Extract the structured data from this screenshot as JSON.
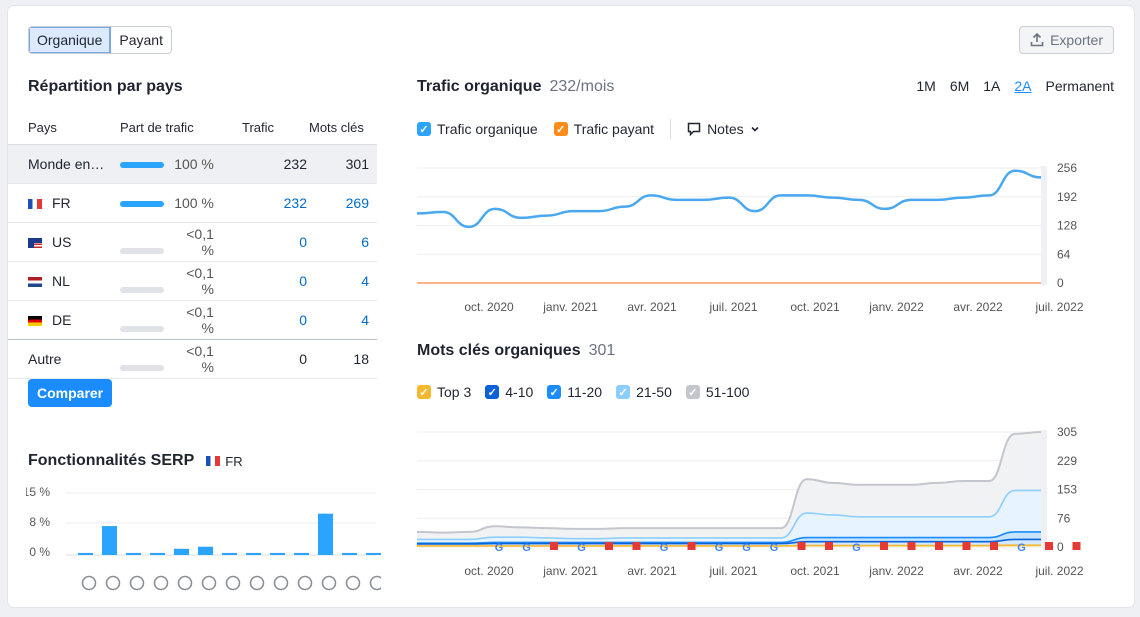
{
  "tabs": {
    "organic": "Organique",
    "paid": "Payant"
  },
  "export_label": "Exporter",
  "countries": {
    "title": "Répartition par pays",
    "headers": {
      "country": "Pays",
      "share": "Part de trafic",
      "traffic": "Trafic",
      "keywords": "Mots clés"
    },
    "rows": [
      {
        "name": "Monde en…",
        "flag": "",
        "share": "100 %",
        "bar": 1.0,
        "traffic": "232",
        "keywords": "301",
        "link": false
      },
      {
        "name": "FR",
        "flag": "fr",
        "share": "100 %",
        "bar": 1.0,
        "traffic": "232",
        "keywords": "269",
        "link": true
      },
      {
        "name": "US",
        "flag": "us",
        "share": "<0,1 %",
        "bar": 0,
        "traffic": "0",
        "keywords": "6",
        "link": true
      },
      {
        "name": "NL",
        "flag": "nl",
        "share": "<0,1 %",
        "bar": 0,
        "traffic": "0",
        "keywords": "4",
        "link": true
      },
      {
        "name": "DE",
        "flag": "de",
        "share": "<0,1 %",
        "bar": 0,
        "traffic": "0",
        "keywords": "4",
        "link": true
      },
      {
        "name": "Autre",
        "flag": "",
        "share": "<0,1 %",
        "bar": 0,
        "traffic": "0",
        "keywords": "18",
        "link": false
      }
    ],
    "compare_label": "Comparer"
  },
  "serp": {
    "title": "Fonctionnalités SERP",
    "country": "FR",
    "ticks": [
      "15 %",
      "8 %",
      "0 %"
    ],
    "icons": [
      "graduation-cap-icon",
      "map-pin-icon",
      "news-icon",
      "image-gallery-icon",
      "link-icon",
      "star-icon",
      "video-icon",
      "play-icon",
      "crown-icon",
      "image-icon",
      "video-carousel-icon",
      "review-icon",
      "question-icon"
    ]
  },
  "traffic": {
    "title": "Trafic organique",
    "value": "232/mois",
    "ranges": [
      "1M",
      "6M",
      "1A",
      "2A",
      "Permanent"
    ],
    "active_range": "2A",
    "legend": {
      "organic": "Trafic organique",
      "paid": "Trafic payant",
      "notes": "Notes"
    },
    "y_ticks": [
      "256",
      "192",
      "128",
      "64",
      "0"
    ],
    "x_ticks": [
      "oct. 2020",
      "janv. 2021",
      "avr. 2021",
      "juil. 2021",
      "oct. 2021",
      "janv. 2022",
      "avr. 2022",
      "juil. 2022"
    ]
  },
  "keywords": {
    "title": "Mots clés organiques",
    "value": "301",
    "legend": [
      "Top 3",
      "4-10",
      "11-20",
      "21-50",
      "51-100"
    ],
    "y_ticks": [
      "305",
      "229",
      "153",
      "76",
      "0"
    ],
    "x_ticks": [
      "oct. 2020",
      "janv. 2021",
      "avr. 2021",
      "juil. 2021",
      "oct. 2021",
      "janv. 2022",
      "avr. 2022",
      "juil. 2022"
    ]
  },
  "chart_data": [
    {
      "type": "line",
      "title": "Trafic organique",
      "x": [
        "2020-07",
        "2020-08",
        "2020-09",
        "2020-10",
        "2020-11",
        "2020-12",
        "2021-01",
        "2021-02",
        "2021-03",
        "2021-04",
        "2021-05",
        "2021-06",
        "2021-07",
        "2021-08",
        "2021-09",
        "2021-10",
        "2021-11",
        "2021-12",
        "2022-01",
        "2022-02",
        "2022-03",
        "2022-04",
        "2022-05",
        "2022-06",
        "2022-07"
      ],
      "series": [
        {
          "name": "Trafic organique",
          "values": [
            155,
            158,
            125,
            165,
            145,
            150,
            160,
            160,
            170,
            195,
            185,
            185,
            190,
            160,
            195,
            195,
            190,
            185,
            165,
            185,
            185,
            190,
            195,
            250,
            235
          ]
        },
        {
          "name": "Trafic payant",
          "values": [
            0,
            0,
            0,
            0,
            0,
            0,
            0,
            0,
            0,
            0,
            0,
            0,
            0,
            0,
            0,
            0,
            0,
            0,
            0,
            0,
            0,
            0,
            0,
            0,
            0
          ]
        }
      ],
      "ylim": [
        0,
        256
      ]
    },
    {
      "type": "area",
      "title": "Mots clés organiques",
      "x": [
        "2020-07",
        "2020-08",
        "2020-09",
        "2020-10",
        "2020-11",
        "2020-12",
        "2021-01",
        "2021-02",
        "2021-03",
        "2021-04",
        "2021-05",
        "2021-06",
        "2021-07",
        "2021-08",
        "2021-09",
        "2021-10",
        "2021-11",
        "2021-12",
        "2022-01",
        "2022-02",
        "2022-03",
        "2022-04",
        "2022-05",
        "2022-06",
        "2022-07"
      ],
      "series": [
        {
          "name": "Top 3",
          "values": [
            3,
            3,
            3,
            3,
            3,
            3,
            3,
            3,
            3,
            3,
            3,
            3,
            3,
            3,
            3,
            4,
            4,
            4,
            4,
            4,
            4,
            4,
            4,
            5,
            5
          ]
        },
        {
          "name": "4-10",
          "values": [
            8,
            8,
            8,
            9,
            9,
            9,
            9,
            9,
            9,
            9,
            9,
            9,
            9,
            9,
            9,
            14,
            14,
            14,
            14,
            14,
            14,
            14,
            14,
            20,
            20
          ]
        },
        {
          "name": "11-20",
          "values": [
            10,
            10,
            10,
            12,
            12,
            12,
            12,
            12,
            12,
            12,
            12,
            12,
            12,
            12,
            12,
            25,
            25,
            25,
            25,
            25,
            25,
            25,
            25,
            40,
            40
          ]
        },
        {
          "name": "21-50",
          "values": [
            20,
            20,
            20,
            26,
            26,
            24,
            22,
            22,
            24,
            24,
            24,
            24,
            24,
            24,
            24,
            90,
            85,
            80,
            80,
            80,
            80,
            80,
            80,
            150,
            150
          ]
        },
        {
          "name": "51-100",
          "values": [
            40,
            38,
            40,
            55,
            52,
            50,
            48,
            48,
            50,
            50,
            50,
            50,
            50,
            50,
            50,
            180,
            170,
            165,
            165,
            165,
            170,
            175,
            175,
            300,
            305
          ]
        }
      ],
      "ylim": [
        0,
        305
      ]
    }
  ]
}
